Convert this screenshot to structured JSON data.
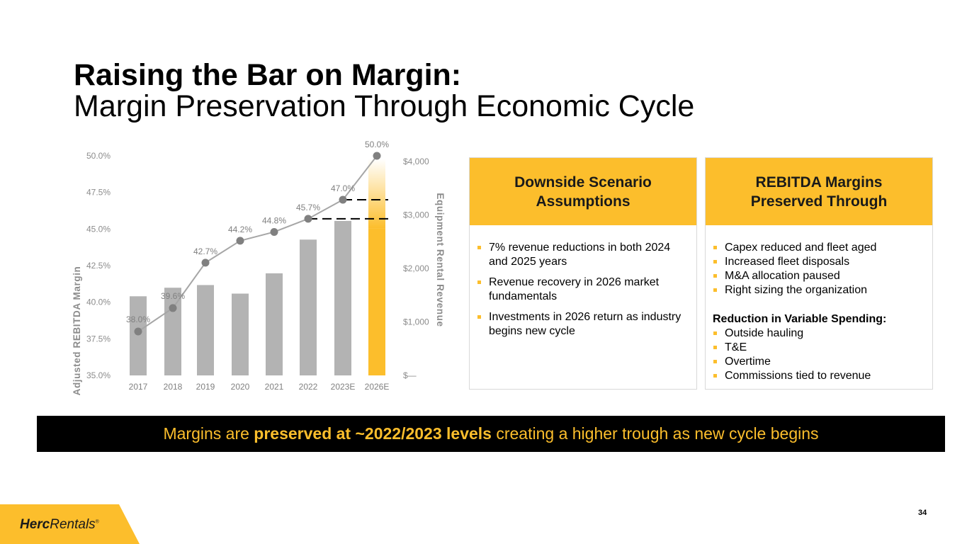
{
  "title": {
    "line1": "Raising the Bar on Margin:",
    "line2": "Margin Preservation Through Economic Cycle"
  },
  "chart_data": {
    "type": "bar+line",
    "categories": [
      "2017",
      "2018",
      "2019",
      "2020",
      "2021",
      "2022",
      "2023E",
      "2026E"
    ],
    "series": [
      {
        "name": "Equipment Rental Revenue",
        "type": "bar",
        "axis": "right",
        "values": [
          1480,
          1640,
          1690,
          1530,
          1910,
          2540,
          2890,
          4050
        ],
        "lower_segment_2026E": 2750,
        "color": "#b3b3b3",
        "highlight_color": "#fcbe2c"
      },
      {
        "name": "Adjusted REBITDA Margin",
        "type": "line",
        "axis": "left",
        "values": [
          38.0,
          39.6,
          42.7,
          44.2,
          44.8,
          45.7,
          47.0,
          50.0
        ],
        "labels": [
          "38.0%",
          "39.6%",
          "42.7%",
          "44.2%",
          "44.8%",
          "45.7%",
          "47.0%",
          "50.0%"
        ],
        "color": "#808080"
      }
    ],
    "dashed_reference_lines": [
      47.0,
      45.7
    ],
    "left_axis": {
      "label": "Adjusted REBITDA Margin",
      "ylim": [
        35.0,
        50.0
      ],
      "ticks": [
        "35.0%",
        "37.5%",
        "40.0%",
        "42.5%",
        "45.0%",
        "47.5%",
        "50.0%"
      ]
    },
    "right_axis": {
      "label": "Equipment Rental Revenue",
      "ylim": [
        0,
        4000
      ],
      "ticks": [
        "$—",
        "$1,000",
        "$2,000",
        "$3,000",
        "$4,000"
      ]
    }
  },
  "panels": {
    "left": {
      "heading": "Downside Scenario Assumptions",
      "bullets": [
        "7% revenue reductions in both 2024 and 2025 years",
        "Revenue recovery in 2026 market fundamentals",
        "Investments in 2026 return as industry begins new cycle"
      ]
    },
    "right": {
      "heading": "REBITDA Margins Preserved Through",
      "bullets": [
        "Capex reduced and fleet aged",
        "Increased fleet disposals",
        "M&A allocation paused",
        "Right sizing the organization"
      ],
      "subheading": "Reduction in Variable Spending:",
      "sub_bullets": [
        "Outside hauling",
        "T&E",
        "Overtime",
        "Commissions tied to revenue"
      ]
    }
  },
  "banner": {
    "part1": "Margins are ",
    "highlight": "preserved at ~2022/2023 levels",
    "part2": " creating a higher trough as new cycle begins"
  },
  "page_number": "34",
  "logo": {
    "bold": "Herc",
    "rest": "Rentals",
    "mark": "®"
  },
  "colors": {
    "accent": "#fcbe2c",
    "bar_gray": "#b3b3b3",
    "line_gray": "#808080",
    "axis_text": "#8c8c8c",
    "banner_bg": "#000000"
  }
}
